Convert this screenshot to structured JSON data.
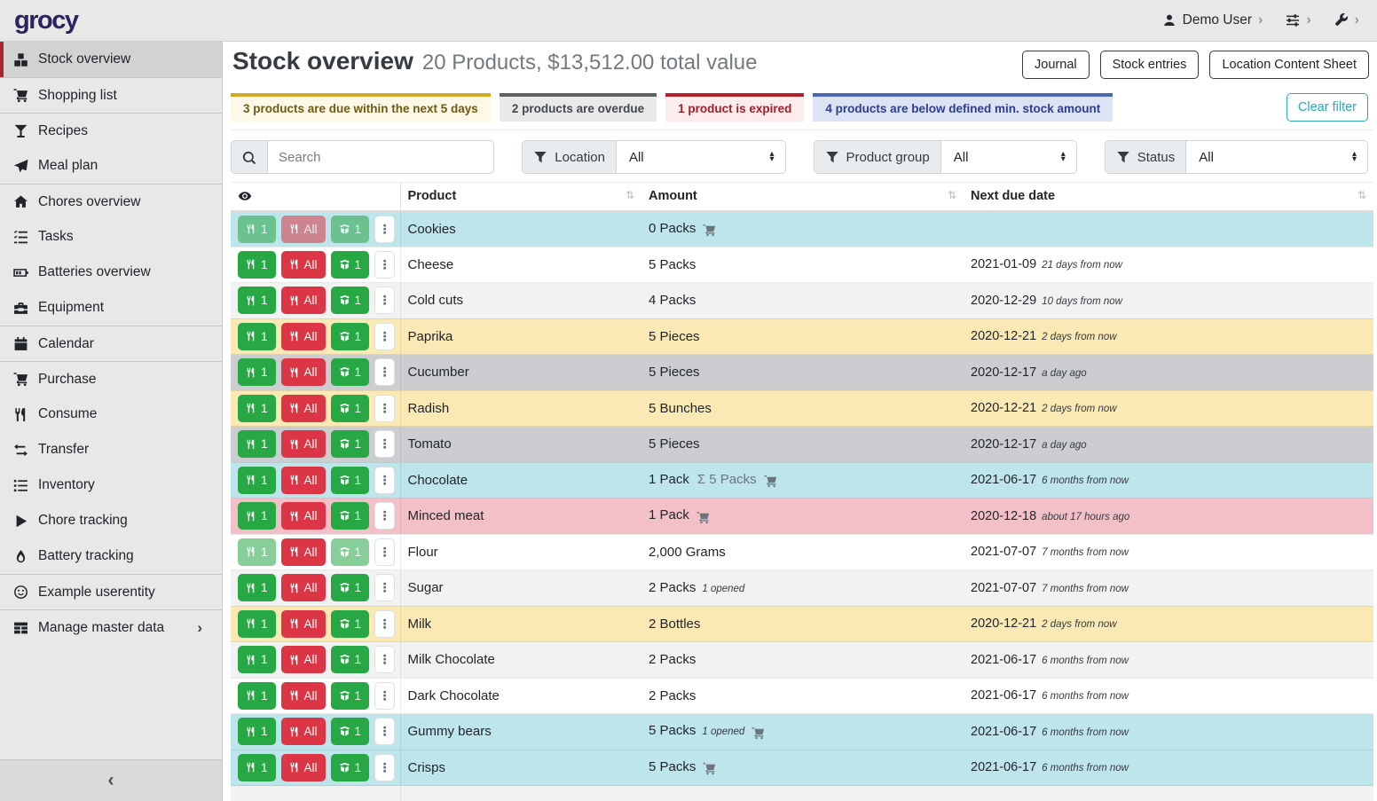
{
  "topbar": {
    "logo": "grocy",
    "user_label": "Demo User"
  },
  "sidebar": {
    "items": [
      {
        "label": "Stock overview",
        "icon": "boxes-icon",
        "active": true
      },
      {
        "label": "Shopping list",
        "icon": "cart-icon",
        "divider": true
      },
      {
        "label": "Recipes",
        "icon": "cocktail-icon",
        "divider": true
      },
      {
        "label": "Meal plan",
        "icon": "paper-plane-icon"
      },
      {
        "label": "Chores overview",
        "icon": "home-icon",
        "divider": true
      },
      {
        "label": "Tasks",
        "icon": "tasks-icon"
      },
      {
        "label": "Batteries overview",
        "icon": "battery-icon"
      },
      {
        "label": "Equipment",
        "icon": "toolbox-icon"
      },
      {
        "label": "Calendar",
        "icon": "calendar-icon",
        "divider": true
      },
      {
        "label": "Purchase",
        "icon": "cart-icon",
        "divider": true
      },
      {
        "label": "Consume",
        "icon": "utensils-icon"
      },
      {
        "label": "Transfer",
        "icon": "exchange-icon"
      },
      {
        "label": "Inventory",
        "icon": "list-icon"
      },
      {
        "label": "Chore tracking",
        "icon": "play-icon"
      },
      {
        "label": "Battery tracking",
        "icon": "flame-icon"
      },
      {
        "label": "Example userentity",
        "icon": "smiley-icon",
        "divider": true
      },
      {
        "label": "Manage master data",
        "icon": "table-icon",
        "divider": true,
        "chevron": true
      }
    ]
  },
  "page": {
    "title": "Stock overview",
    "subtitle": "20 Products, $13,512.00 total value",
    "actions": [
      "Journal",
      "Stock entries",
      "Location Content Sheet"
    ]
  },
  "banners": [
    {
      "text": "3 products are due within the next 5 days",
      "type": "warning"
    },
    {
      "text": "2 products are overdue",
      "type": "secondary"
    },
    {
      "text": "1 product is expired",
      "type": "danger"
    },
    {
      "text": "4 products are below defined min. stock amount",
      "type": "info"
    }
  ],
  "clear_filter_label": "Clear filter",
  "filters": {
    "search_placeholder": "Search",
    "selects": [
      {
        "label": "Location",
        "value": "All"
      },
      {
        "label": "Product group",
        "value": "All"
      },
      {
        "label": "Status",
        "value": "All"
      }
    ]
  },
  "table": {
    "headers": {
      "product": "Product",
      "amount": "Amount",
      "due": "Next due date"
    },
    "action_labels": {
      "consume_one": "1",
      "consume_all": "All",
      "open_one": "1"
    },
    "rows": [
      {
        "product": "Cookies",
        "amount": "0 Packs",
        "cart": true,
        "date": "",
        "relative": "",
        "status": "info",
        "disabled": [
          "consume1",
          "consumeAll",
          "open1"
        ]
      },
      {
        "product": "Cheese",
        "amount": "5 Packs",
        "date": "2021-01-09",
        "relative": "21 days from now"
      },
      {
        "product": "Cold cuts",
        "amount": "4 Packs",
        "date": "2020-12-29",
        "relative": "10 days from now"
      },
      {
        "product": "Paprika",
        "amount": "5 Pieces",
        "date": "2020-12-21",
        "relative": "2 days from now",
        "status": "warning"
      },
      {
        "product": "Cucumber",
        "amount": "5 Pieces",
        "date": "2020-12-17",
        "relative": "a day ago",
        "status": "secondary"
      },
      {
        "product": "Radish",
        "amount": "5 Bunches",
        "date": "2020-12-21",
        "relative": "2 days from now",
        "status": "warning"
      },
      {
        "product": "Tomato",
        "amount": "5 Pieces",
        "date": "2020-12-17",
        "relative": "a day ago",
        "status": "secondary"
      },
      {
        "product": "Chocolate",
        "amount": "1 Pack",
        "sum": "5 Packs",
        "cart": true,
        "date": "2021-06-17",
        "relative": "6 months from now",
        "status": "info"
      },
      {
        "product": "Minced meat",
        "amount": "1 Pack",
        "cart": true,
        "date": "2020-12-18",
        "relative": "about 17 hours ago",
        "status": "danger"
      },
      {
        "product": "Flour",
        "amount": "2,000 Grams",
        "date": "2021-07-07",
        "relative": "7 months from now",
        "disabled": [
          "consume1",
          "open1"
        ]
      },
      {
        "product": "Sugar",
        "amount": "2 Packs",
        "note": "1 opened",
        "date": "2021-07-07",
        "relative": "7 months from now"
      },
      {
        "product": "Milk",
        "amount": "2 Bottles",
        "date": "2020-12-21",
        "relative": "2 days from now",
        "status": "warning"
      },
      {
        "product": "Milk Chocolate",
        "amount": "2 Packs",
        "date": "2021-06-17",
        "relative": "6 months from now"
      },
      {
        "product": "Dark Chocolate",
        "amount": "2 Packs",
        "date": "2021-06-17",
        "relative": "6 months from now"
      },
      {
        "product": "Gummy bears",
        "amount": "5 Packs",
        "note": "1 opened",
        "cart": true,
        "date": "2021-06-17",
        "relative": "6 months from now",
        "status": "info"
      },
      {
        "product": "Crisps",
        "amount": "5 Packs",
        "cart": true,
        "date": "2021-06-17",
        "relative": "6 months from now",
        "status": "info"
      },
      {
        "partial": true
      }
    ]
  },
  "glyphs": {
    "dots": "⋮",
    "sigma": "Σ",
    "sort": "⇅",
    "chevron_right": "›",
    "collapse_left": "‹",
    "select_up": "▴",
    "select_down": "▾"
  },
  "colors": {
    "brand_logo": "#2a2560",
    "success_button": "#28a745",
    "danger_button": "#dc3545",
    "row_info": "#bee5eb",
    "row_warning": "#fae9b4",
    "row_secondary": "#cbcdd0",
    "row_danger": "#f4c0c8",
    "active_item_border": "#a72430",
    "clear_filter": "#2ca7bc",
    "banner_warning_border": "#d2a626",
    "banner_secondary_border": "#616161",
    "banner_danger_border": "#b2212a",
    "banner_info_border": "#4c67b0"
  }
}
